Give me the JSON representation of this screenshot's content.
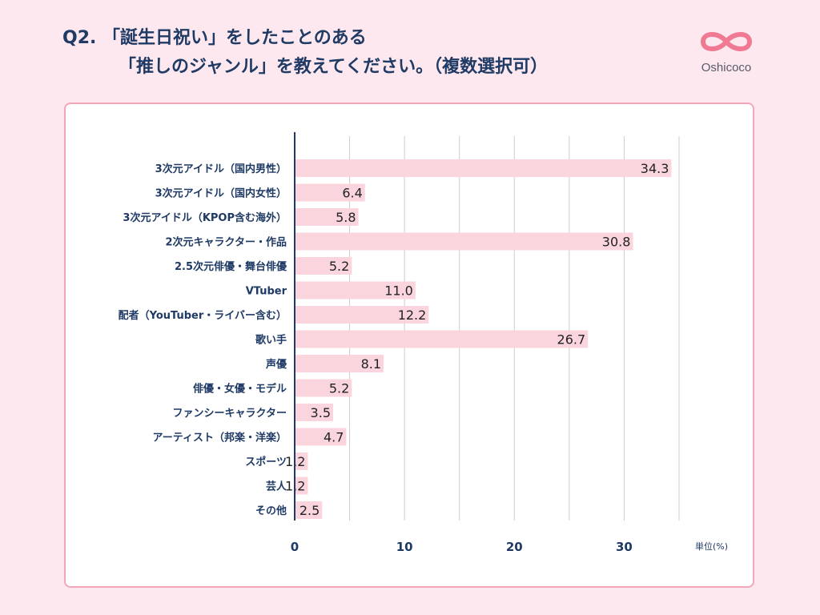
{
  "title": {
    "line1": "Q2. 「誕生日祝い」をしたことのある",
    "line2": "「推しのジャンル」を教えてください。（複数選択可）"
  },
  "logo": {
    "text": "Oshicoco",
    "icon": "infinity-heart-icon",
    "color": "#f07a93"
  },
  "colors": {
    "bar": "#fbd5de",
    "axis": "#1f3a64",
    "grid": "#cccccc"
  },
  "chart_data": {
    "type": "bar",
    "orientation": "horizontal",
    "categories": [
      "3次元アイドル（国内男性）",
      "3次元アイドル（国内女性）",
      "3次元アイドル（KPOP含む海外）",
      "2次元キャラクター・作品",
      "2.5次元俳優・舞台俳優",
      "VTuber",
      "配者（YouTuber・ライバー含む）",
      "歌い手",
      "声優",
      "俳優・女優・モデル",
      "ファンシーキャラクター",
      "アーティスト（邦楽・洋楽）",
      "スポーツ",
      "芸人",
      "その他"
    ],
    "values": [
      34.3,
      6.4,
      5.8,
      30.8,
      5.2,
      11.0,
      12.2,
      26.7,
      8.1,
      5.2,
      3.5,
      4.7,
      1.2,
      1.2,
      2.5
    ],
    "value_labels": [
      "34.3",
      "6.4",
      "5.8",
      "30.8",
      "5.2",
      "11.0",
      "12.2",
      "26.7",
      "8.1",
      "5.2",
      "3.5",
      "4.7",
      "1.2",
      "1.2",
      "2.5"
    ],
    "xlim": [
      0,
      35
    ],
    "xticks": [
      0,
      10,
      20,
      30
    ],
    "xtick_labels": [
      "0",
      "10",
      "20",
      "30"
    ],
    "gridlines": [
      5,
      10,
      15,
      20,
      25,
      30,
      35
    ],
    "unit_label": "単位(%)"
  }
}
